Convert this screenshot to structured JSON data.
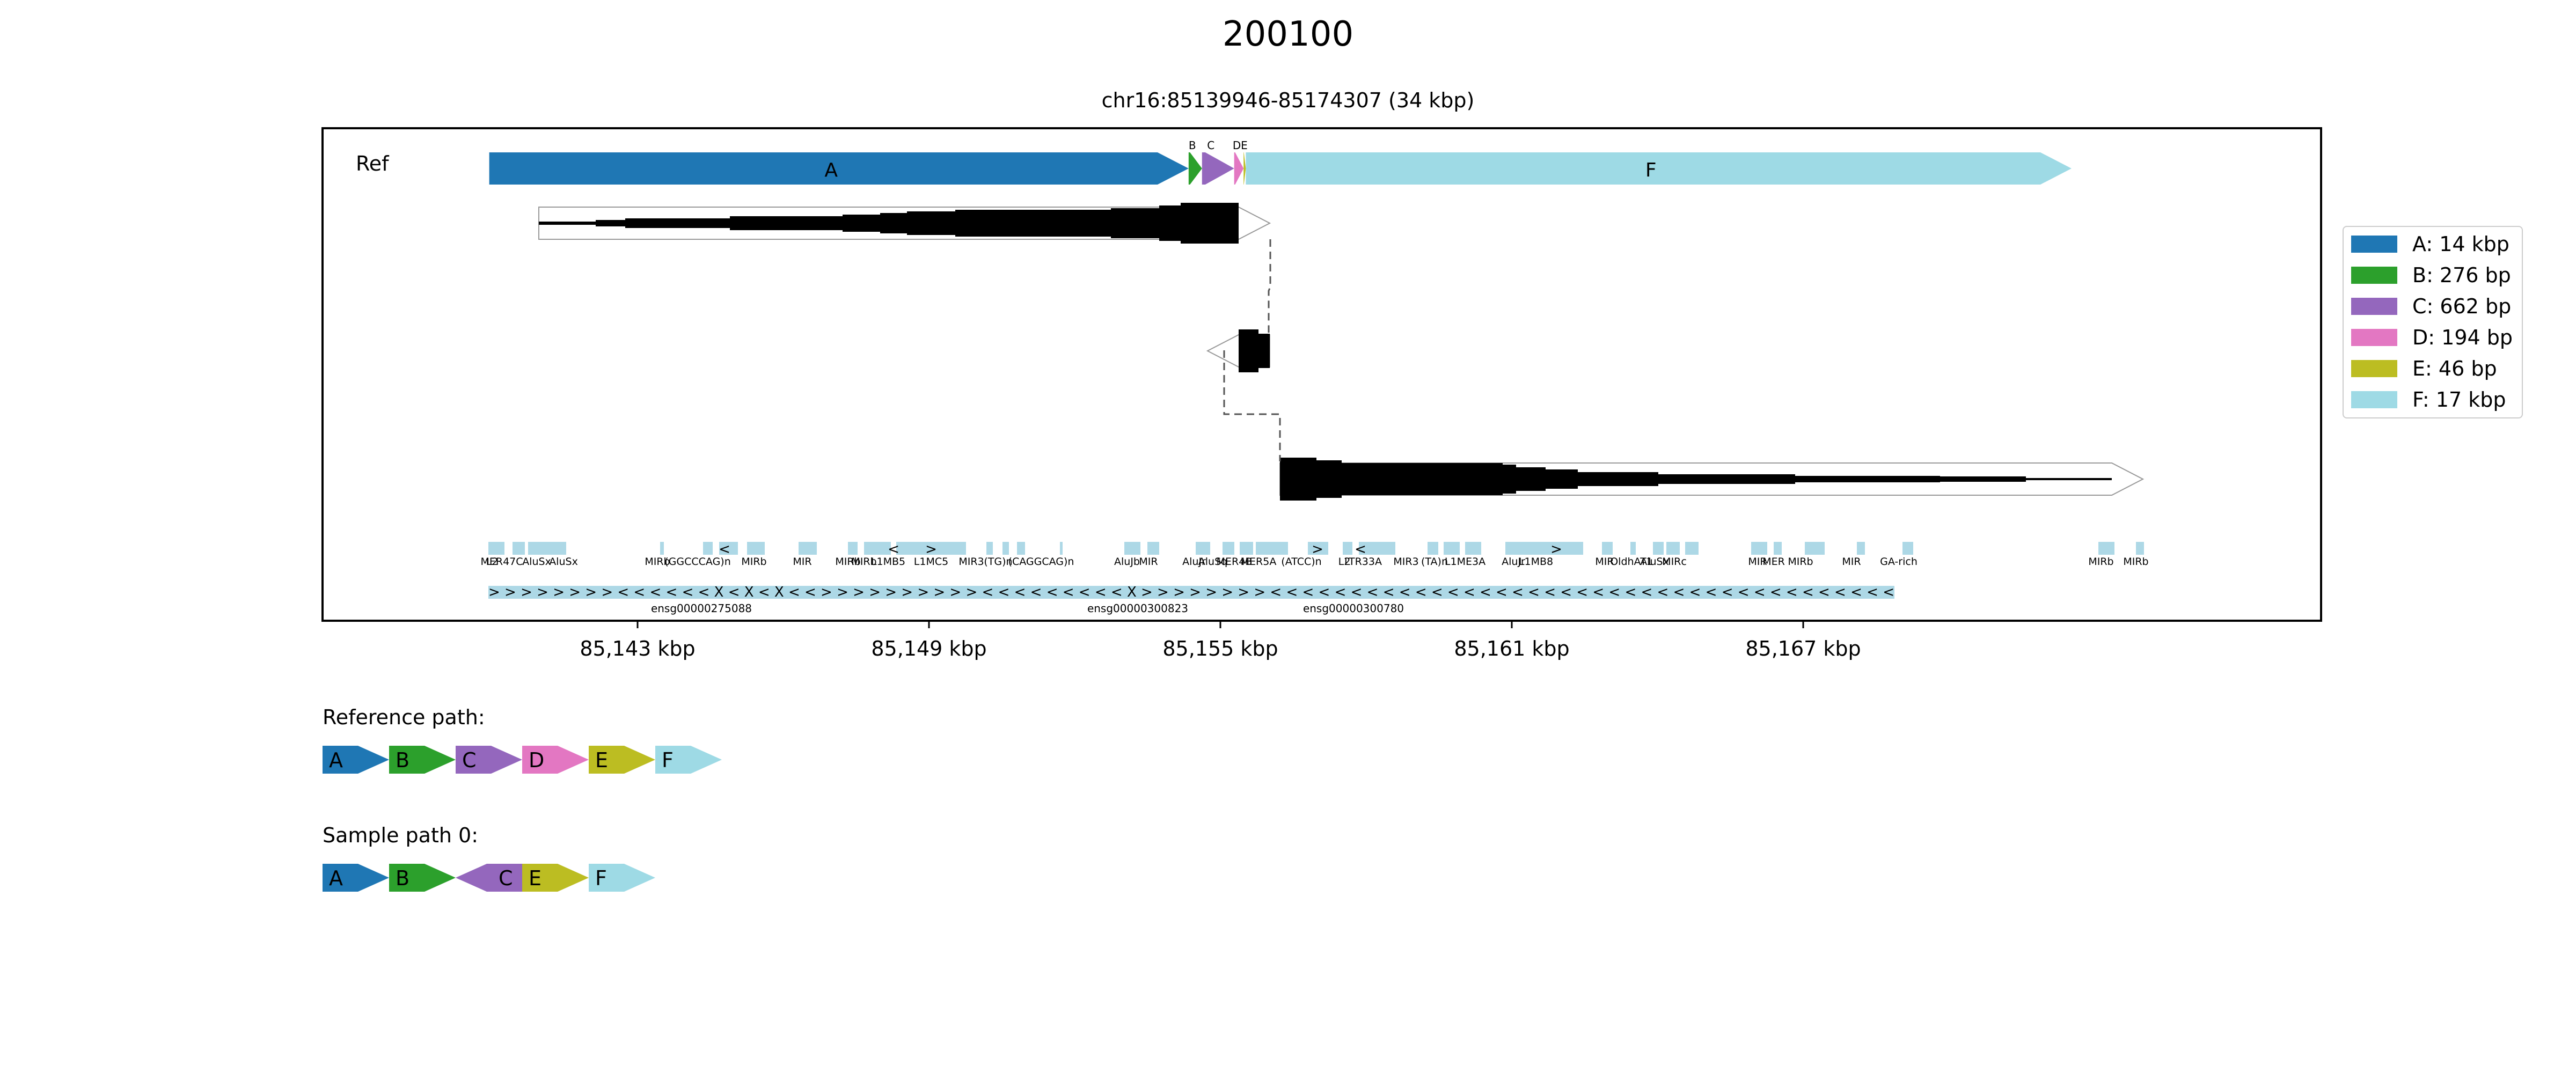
{
  "figure": {
    "title": "200100",
    "region": "chr16:85139946-85174307 (34 kbp)",
    "track_label": "Ref"
  },
  "colors": {
    "A": "#1f77b4",
    "B": "#2ca02c",
    "C": "#9467bd",
    "D": "#e377c2",
    "E": "#bcbd22",
    "F": "#9edae5",
    "repeat": "#add8e6"
  },
  "ref_segments": [
    {
      "label": "A",
      "start": 85139946,
      "end": 85154346
    },
    {
      "label": "B",
      "start": 85154346,
      "end": 85154622
    },
    {
      "label": "C",
      "start": 85154622,
      "end": 85155284
    },
    {
      "label": "D",
      "start": 85155284,
      "end": 85155478
    },
    {
      "label": "E",
      "start": 85155478,
      "end": 85155524
    },
    {
      "label": "F",
      "start": 85155524,
      "end": 85172524
    }
  ],
  "axis": {
    "ticks": [
      {
        "value": 85143000,
        "label": "85,143 kbp"
      },
      {
        "value": 85149000,
        "label": "85,149 kbp"
      },
      {
        "value": 85155000,
        "label": "85,155 kbp"
      },
      {
        "value": 85161000,
        "label": "85,161 kbp"
      },
      {
        "value": 85167000,
        "label": "85,167 kbp"
      }
    ]
  },
  "repeat_labels": [
    "L2",
    "MER47C",
    "AluSx",
    "AluSx",
    "MIRb",
    "(GGCCCAG)n",
    "MIRb",
    "MIR",
    "MIRb",
    "MIRb",
    "L1MB5",
    "L1MC5",
    "MIR3",
    "(TG)n",
    "(CAGGCAG)n",
    "AluJb",
    "MIR",
    "AluJr",
    "AluSq",
    "MER4B",
    "MER5A",
    "(ATCC)n",
    "L2",
    "LTR33A",
    "MIR3",
    "(TA)n",
    "L1ME3A",
    "AluJr",
    "L1MB8",
    "MIR",
    "OldhAT1",
    "AluSx",
    "MIRc",
    "MIR",
    "MER",
    "MIRb",
    "MIR",
    "GA-rich",
    "MIRb",
    "MIRb"
  ],
  "genes": [
    "ensg00000275088",
    "ensg00000300823",
    "ensg00000300780"
  ],
  "legend": [
    {
      "key": "A",
      "text": "A: 14 kbp"
    },
    {
      "key": "B",
      "text": "B: 276 bp"
    },
    {
      "key": "C",
      "text": "C: 662 bp"
    },
    {
      "key": "D",
      "text": "D: 194 bp"
    },
    {
      "key": "E",
      "text": "E: 46 bp"
    },
    {
      "key": "F",
      "text": "F: 17 kbp"
    }
  ],
  "paths": [
    {
      "title": "Reference path:",
      "blocks": [
        {
          "label": "A",
          "dir": ">"
        },
        {
          "label": "B",
          "dir": ">"
        },
        {
          "label": "C",
          "dir": ">"
        },
        {
          "label": "D",
          "dir": ">"
        },
        {
          "label": "E",
          "dir": ">"
        },
        {
          "label": "F",
          "dir": ">"
        }
      ]
    },
    {
      "title": "Sample path 0:",
      "blocks": [
        {
          "label": "A",
          "dir": ">"
        },
        {
          "label": "B",
          "dir": ">"
        },
        {
          "label": "C",
          "dir": "<"
        },
        {
          "label": "E",
          "dir": ">"
        },
        {
          "label": "F",
          "dir": ">"
        }
      ]
    }
  ]
}
